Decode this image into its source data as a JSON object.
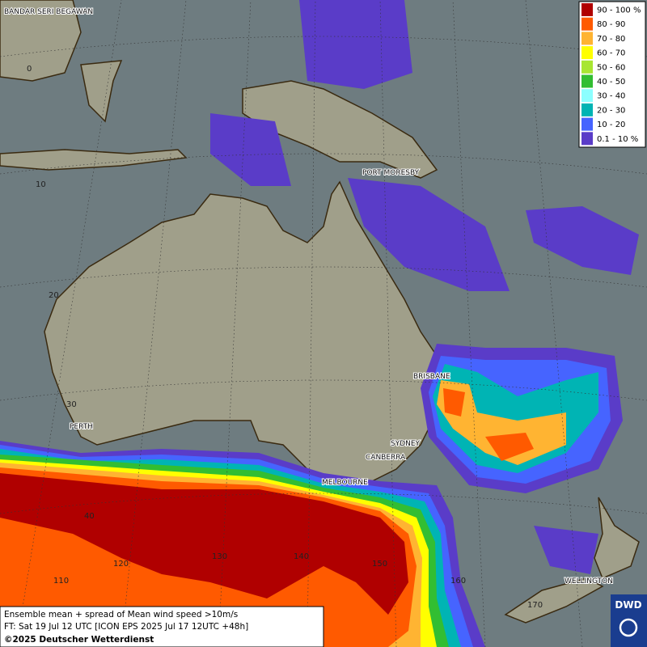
{
  "legend": {
    "items": [
      {
        "label": "90 - 100 %",
        "color": "#b00000"
      },
      {
        "label": "80 - 90",
        "color": "#ff5a00"
      },
      {
        "label": "70 - 80",
        "color": "#ffb432"
      },
      {
        "label": "60 - 70",
        "color": "#ffff00"
      },
      {
        "label": "50 - 60",
        "color": "#a8e632"
      },
      {
        "label": "40 - 50",
        "color": "#32be32"
      },
      {
        "label": "30 - 40",
        "color": "#8cffff"
      },
      {
        "label": "20 - 30",
        "color": "#00b4b4"
      },
      {
        "label": "10 - 20",
        "color": "#4664ff"
      },
      {
        "label": "0.1 - 10 %",
        "color": "#5a3cc8"
      }
    ]
  },
  "cities": [
    "BANDAR SERI BEGAWAN",
    "PORT MORESBY",
    "BRISBANE",
    "PERTH",
    "SYDNEY",
    "CANBERRA",
    "MELBOURNE",
    "WELLINGTON"
  ],
  "latitude_labels": [
    "0",
    "10",
    "20",
    "30",
    "40"
  ],
  "longitude_labels": [
    "110",
    "120",
    "130",
    "140",
    "150",
    "160",
    "170"
  ],
  "footer": {
    "line1": "Ensemble mean + spread of Mean wind speed >10m/s",
    "line2": "FT: Sat 19 Jul 12 UTC [ICON EPS 2025 Jul 17 12UTC +48h]",
    "line3": "©2025 Deutscher Wetterdienst"
  },
  "logo": "DWD"
}
